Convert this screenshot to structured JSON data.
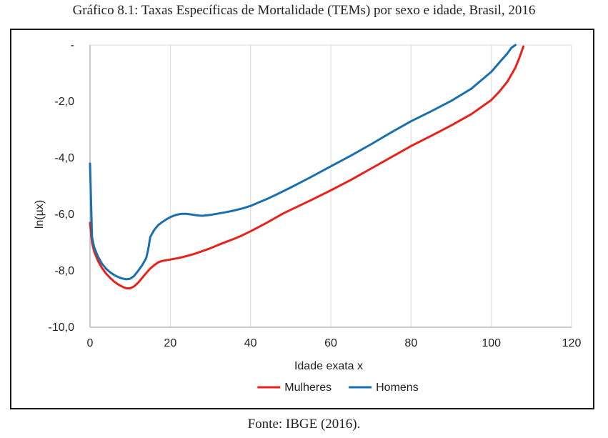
{
  "caption": "Gráfico 8.1: Taxas Específicas de Mortalidade (TEMs) por sexo e idade, Brasil, 2016",
  "source": "Fonte: IBGE (2016).",
  "chart_data": {
    "type": "line",
    "title": "",
    "xlabel": "Idade exata x",
    "ylabel": "ln(µx)",
    "xlim": [
      0,
      120
    ],
    "ylim": [
      -10,
      0
    ],
    "x_ticks": [
      0,
      20,
      40,
      60,
      80,
      100,
      120
    ],
    "x_tick_labels": [
      "0",
      "20",
      "40",
      "60",
      "80",
      "100",
      "120"
    ],
    "y_ticks": [
      0,
      -2,
      -4,
      -6,
      -8,
      -10
    ],
    "y_tick_labels": [
      "-",
      "-2,0",
      "-4,0",
      "-6,0",
      "-8,0",
      "-10,0"
    ],
    "grid": "vertical",
    "legend_position": "bottom",
    "series": [
      {
        "name": "Mulheres",
        "color": "#e8221b",
        "x": [
          0,
          0.5,
          1,
          2,
          3,
          4,
          5,
          6,
          7,
          8,
          9,
          10,
          11,
          12,
          13,
          14,
          15,
          16,
          17,
          18,
          20,
          22,
          24,
          26,
          28,
          30,
          32,
          34,
          36,
          38,
          40,
          42,
          44,
          46,
          48,
          50,
          55,
          60,
          65,
          70,
          75,
          80,
          85,
          90,
          95,
          100,
          102,
          104,
          106,
          107,
          108
        ],
        "y": [
          -6.3,
          -7.0,
          -7.3,
          -7.65,
          -7.9,
          -8.1,
          -8.25,
          -8.38,
          -8.48,
          -8.56,
          -8.62,
          -8.62,
          -8.55,
          -8.42,
          -8.25,
          -8.08,
          -7.92,
          -7.8,
          -7.7,
          -7.65,
          -7.6,
          -7.55,
          -7.48,
          -7.4,
          -7.3,
          -7.2,
          -7.08,
          -6.97,
          -6.86,
          -6.74,
          -6.6,
          -6.45,
          -6.3,
          -6.14,
          -5.98,
          -5.84,
          -5.5,
          -5.15,
          -4.78,
          -4.38,
          -3.98,
          -3.58,
          -3.22,
          -2.85,
          -2.45,
          -1.95,
          -1.65,
          -1.3,
          -0.8,
          -0.45,
          -0.05
        ]
      },
      {
        "name": "Homens",
        "color": "#1a6fad",
        "x": [
          0,
          0.5,
          1,
          2,
          3,
          4,
          5,
          6,
          7,
          8,
          9,
          10,
          11,
          12,
          13,
          14,
          14.5,
          15,
          16,
          17,
          18,
          19,
          20,
          21,
          22,
          23,
          24,
          25,
          26,
          27,
          28,
          30,
          32,
          34,
          36,
          38,
          40,
          42,
          44,
          46,
          48,
          50,
          55,
          60,
          65,
          70,
          75,
          80,
          85,
          90,
          95,
          100,
          102,
          104,
          105,
          106
        ],
        "y": [
          -4.2,
          -6.8,
          -7.15,
          -7.5,
          -7.75,
          -7.93,
          -8.05,
          -8.15,
          -8.22,
          -8.27,
          -8.3,
          -8.28,
          -8.18,
          -8.0,
          -7.8,
          -7.55,
          -7.25,
          -6.8,
          -6.55,
          -6.38,
          -6.27,
          -6.18,
          -6.1,
          -6.04,
          -6.0,
          -5.98,
          -5.98,
          -6.0,
          -6.02,
          -6.04,
          -6.05,
          -6.02,
          -5.97,
          -5.92,
          -5.86,
          -5.79,
          -5.7,
          -5.58,
          -5.46,
          -5.33,
          -5.19,
          -5.05,
          -4.68,
          -4.3,
          -3.92,
          -3.52,
          -3.1,
          -2.7,
          -2.35,
          -1.98,
          -1.55,
          -0.95,
          -0.62,
          -0.3,
          -0.1,
          0.0
        ]
      }
    ]
  }
}
